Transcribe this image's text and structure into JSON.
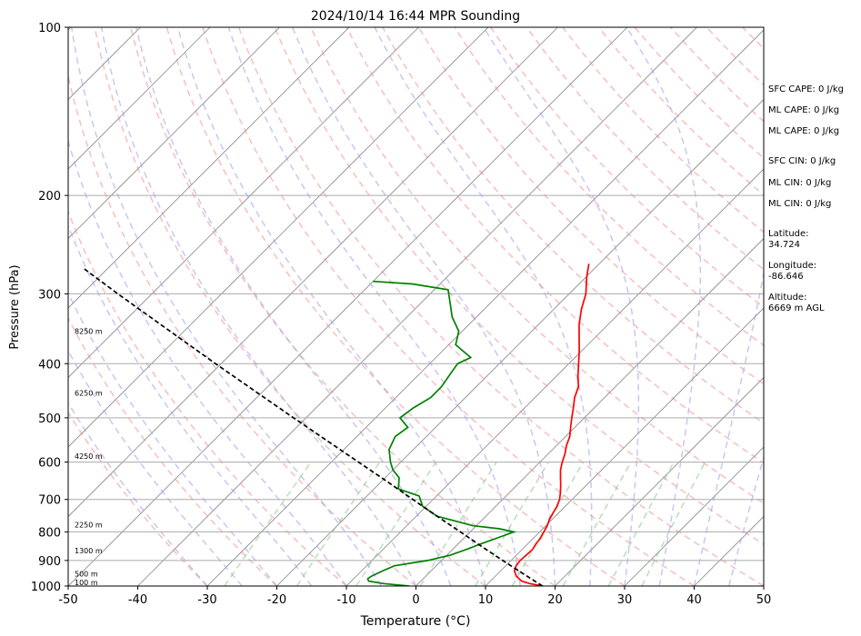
{
  "chart_data": {
    "type": "line",
    "title": "2024/10/14 16:44 MPR Sounding",
    "xlabel": "Temperature (°C)",
    "ylabel": "Pressure (hPa)",
    "xlim": [
      -50,
      50
    ],
    "ylim": [
      1000,
      100
    ],
    "y_scale": "log",
    "x_ticks": [
      "-50",
      "-40",
      "-30",
      "-20",
      "-10",
      "0",
      "10",
      "20",
      "30",
      "40",
      "50"
    ],
    "y_ticks": [
      "100",
      "200",
      "300",
      "400",
      "500",
      "600",
      "700",
      "800",
      "900",
      "1000"
    ],
    "grid": true,
    "skew_isotherms": true,
    "background_lines": {
      "dry_adiabats_color": "#f08080",
      "moist_adiabats_color": "#9999ee",
      "mixing_ratio_color": "#88cc88",
      "isotherm_color": "#888888"
    },
    "series": [
      {
        "color": "#ff0000",
        "points": [
          [
            1000,
            18.2
          ],
          [
            990,
            16.0
          ],
          [
            980,
            14.5
          ],
          [
            960,
            13.0
          ],
          [
            940,
            12.0
          ],
          [
            920,
            11.5
          ],
          [
            900,
            11.3
          ],
          [
            880,
            11.4
          ],
          [
            860,
            11.5
          ],
          [
            840,
            11.2
          ],
          [
            820,
            11.0
          ],
          [
            800,
            10.6
          ],
          [
            780,
            10.2
          ],
          [
            760,
            9.6
          ],
          [
            740,
            9.2
          ],
          [
            720,
            8.8
          ],
          [
            700,
            8.2
          ],
          [
            680,
            7.3
          ],
          [
            660,
            6.3
          ],
          [
            640,
            5.2
          ],
          [
            620,
            4.1
          ],
          [
            600,
            3.2
          ],
          [
            580,
            2.4
          ],
          [
            560,
            1.4
          ],
          [
            540,
            0.6
          ],
          [
            520,
            -0.6
          ],
          [
            500,
            -1.8
          ],
          [
            480,
            -3.0
          ],
          [
            460,
            -4.3
          ],
          [
            440,
            -5.3
          ],
          [
            420,
            -7.0
          ],
          [
            400,
            -8.6
          ],
          [
            380,
            -10.3
          ],
          [
            360,
            -12.2
          ],
          [
            340,
            -14.2
          ],
          [
            320,
            -16.0
          ],
          [
            300,
            -17.6
          ],
          [
            280,
            -19.9
          ],
          [
            265,
            -21.5
          ]
        ]
      },
      {
        "color": "#008000",
        "points": [
          [
            1000,
            -1.0
          ],
          [
            990,
            -5.0
          ],
          [
            980,
            -7.5
          ],
          [
            970,
            -8.0
          ],
          [
            960,
            -7.8
          ],
          [
            940,
            -7.0
          ],
          [
            920,
            -6.0
          ],
          [
            900,
            -2.0
          ],
          [
            880,
            0.5
          ],
          [
            860,
            2.0
          ],
          [
            840,
            3.3
          ],
          [
            820,
            4.8
          ],
          [
            800,
            6.3
          ],
          [
            790,
            3.8
          ],
          [
            780,
            -0.5
          ],
          [
            750,
            -7.0
          ],
          [
            720,
            -10.5
          ],
          [
            690,
            -12.5
          ],
          [
            670,
            -16.5
          ],
          [
            640,
            -18.0
          ],
          [
            620,
            -20.0
          ],
          [
            600,
            -21.5
          ],
          [
            570,
            -23.5
          ],
          [
            540,
            -24.5
          ],
          [
            520,
            -24.0
          ],
          [
            500,
            -26.5
          ],
          [
            480,
            -26.0
          ],
          [
            460,
            -25.0
          ],
          [
            440,
            -25.0
          ],
          [
            420,
            -25.5
          ],
          [
            400,
            -26.0
          ],
          [
            390,
            -25.0
          ],
          [
            370,
            -29.0
          ],
          [
            350,
            -30.5
          ],
          [
            330,
            -33.5
          ],
          [
            310,
            -36.0
          ],
          [
            295,
            -38.0
          ],
          [
            288,
            -44.0
          ],
          [
            285,
            -50.0
          ]
        ]
      },
      {
        "color": "#000000",
        "dashed": true,
        "points": [
          [
            1000,
            18.2
          ],
          [
            950,
            13.6
          ],
          [
            900,
            8.8
          ],
          [
            850,
            3.8
          ],
          [
            800,
            -1.4
          ],
          [
            750,
            -7.0
          ],
          [
            700,
            -12.9
          ],
          [
            650,
            -19.2
          ],
          [
            600,
            -26.1
          ],
          [
            550,
            -33.6
          ],
          [
            500,
            -41.8
          ],
          [
            450,
            -50.8
          ],
          [
            400,
            -60.8
          ],
          [
            350,
            -72.0
          ],
          [
            300,
            -84.9
          ],
          [
            270,
            -93.5
          ]
        ]
      }
    ],
    "height_labels": [
      {
        "p": 351,
        "label": "8250 m"
      },
      {
        "p": 453,
        "label": "6250 m"
      },
      {
        "p": 588,
        "label": "4250 m"
      },
      {
        "p": 780,
        "label": "2250 m"
      },
      {
        "p": 867,
        "label": "1300 m"
      },
      {
        "p": 954,
        "label": "500 m"
      },
      {
        "p": 988,
        "label": "100 m"
      }
    ]
  },
  "stats": {
    "sfc_cape": "SFC CAPE: 0 J/kg",
    "ml_cape_1": "ML CAPE: 0 J/kg",
    "ml_cape_2": "ML CAPE: 0 J/kg",
    "sfc_cin": "SFC CIN: 0 J/kg",
    "ml_cin_1": "ML CIN: 0 J/kg",
    "ml_cin_2": "ML CIN: 0 J/kg",
    "latitude": "Latitude:\n34.724",
    "longitude": "Longitude:\n-86.646",
    "altitude": "Altitude:\n6669 m AGL"
  }
}
